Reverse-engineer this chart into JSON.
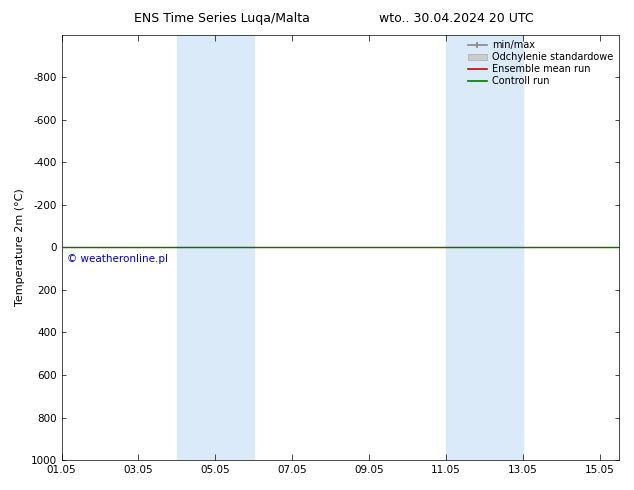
{
  "title_left": "ENS Time Series Luqa/Malta",
  "title_right": "wto.. 30.04.2024 20 UTC",
  "ylabel": "Temperature 2m (°C)",
  "ylim": [
    -1000,
    1000
  ],
  "yticks": [
    -800,
    -600,
    -400,
    -200,
    0,
    200,
    400,
    600,
    800,
    1000
  ],
  "xlim_start": 0,
  "xlim_end": 14.5,
  "xtick_labels": [
    "01.05",
    "03.05",
    "05.05",
    "07.05",
    "09.05",
    "11.05",
    "13.05",
    "15.05"
  ],
  "xtick_positions": [
    0,
    2,
    4,
    6,
    8,
    10,
    12,
    14
  ],
  "shade_bands": [
    {
      "xmin": 3.0,
      "xmax": 5.0
    },
    {
      "xmin": 10.0,
      "xmax": 12.0
    }
  ],
  "shade_color": "#daeaf8",
  "control_run_y": 0,
  "control_run_color": "#007700",
  "ensemble_mean_color": "#cc0000",
  "minmax_color": "#888888",
  "std_color": "#cccccc",
  "watermark": "© weatheronline.pl",
  "watermark_color": "#0000bb",
  "watermark_fontsize": 7.5,
  "legend_entries": [
    "min/max",
    "Odchylenie standardowe",
    "Ensemble mean run",
    "Controll run"
  ],
  "legend_colors": [
    "#888888",
    "#cccccc",
    "#cc0000",
    "#007700"
  ],
  "background_color": "#ffffff",
  "figsize": [
    6.34,
    4.9
  ],
  "dpi": 100,
  "tick_fontsize": 7.5,
  "ylabel_fontsize": 8,
  "legend_fontsize": 7,
  "title_fontsize": 9
}
